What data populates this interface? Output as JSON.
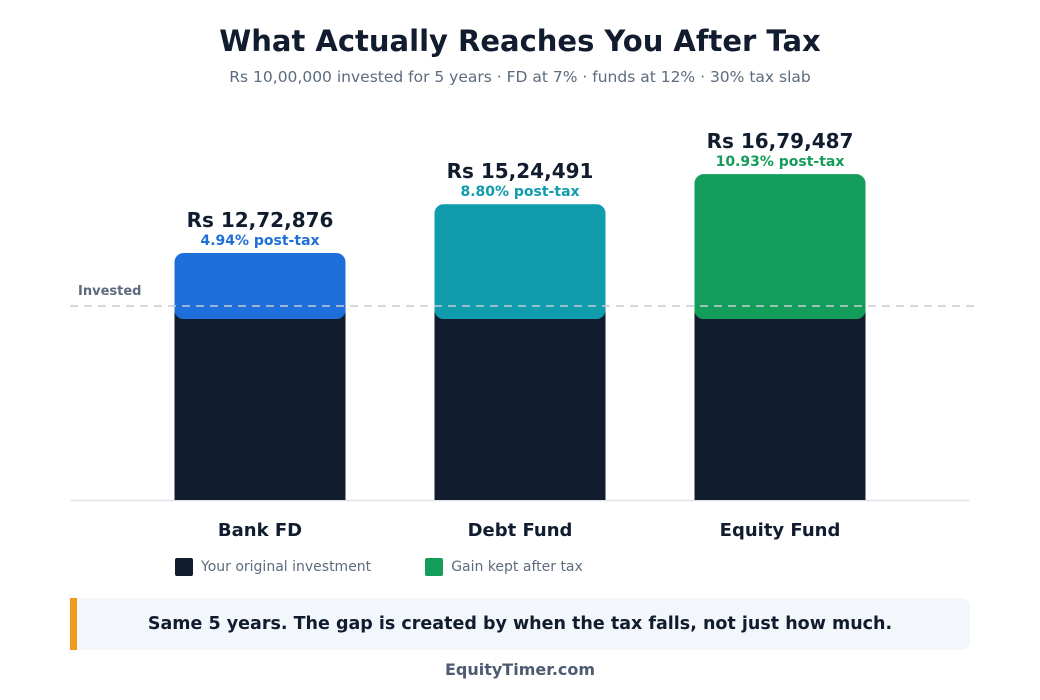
{
  "title": "What Actually Reaches You After Tax",
  "subtitle": "Rs 10,00,000 invested for 5 years · FD at 7% · funds at 12% · 30% tax slab",
  "colors": {
    "invested": "#111c2e",
    "bank_fd": "#1e6fd9",
    "debt_fund": "#109cad",
    "equity_fund": "#149c5a",
    "callout_accent": "#ee9b1b"
  },
  "legend": {
    "investment": "Your original investment",
    "gain": "Gain kept after tax"
  },
  "callout": "Same 5 years. The gap is created by when the tax falls, not just how much.",
  "footer": "EquityTimer.com",
  "chart_data": {
    "type": "bar",
    "stacked": true,
    "categories": [
      "Bank FD",
      "Debt Fund",
      "Equity Fund"
    ],
    "invested": 1000000,
    "totals": [
      1272876,
      1524491,
      1679487
    ],
    "value_labels": [
      "Rs 12,72,876",
      "Rs 15,24,491",
      "Rs 16,79,487"
    ],
    "rate_labels": [
      "4.94% post-tax",
      "8.80% post-tax",
      "10.93% post-tax"
    ],
    "series": [
      {
        "name": "Your original investment",
        "values": [
          1000000,
          1000000,
          1000000
        ]
      },
      {
        "name": "Gain kept after tax",
        "values": [
          272876,
          524491,
          679487
        ]
      }
    ],
    "reference_line": {
      "label": "Invested",
      "value": 1000000
    },
    "ylim": [
      0,
      1700000
    ]
  }
}
